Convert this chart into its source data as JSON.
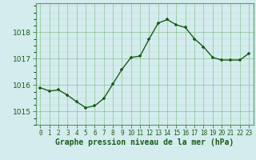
{
  "x": [
    0,
    1,
    2,
    3,
    4,
    5,
    6,
    7,
    8,
    9,
    10,
    11,
    12,
    13,
    14,
    15,
    16,
    17,
    18,
    19,
    20,
    21,
    22,
    23
  ],
  "y": [
    1015.9,
    1015.78,
    1015.82,
    1015.62,
    1015.37,
    1015.15,
    1015.22,
    1015.5,
    1016.05,
    1016.6,
    1017.05,
    1017.1,
    1017.75,
    1018.35,
    1018.48,
    1018.28,
    1018.18,
    1017.75,
    1017.45,
    1017.05,
    1016.95,
    1016.95,
    1016.95,
    1017.2
  ],
  "line_color": "#1a5c1a",
  "marker_color": "#1a5c1a",
  "bg_color": "#d4ecee",
  "grid_color": "#7ab87a",
  "grid_color_minor": "#a0cca0",
  "xlabel": "Graphe pression niveau de la mer (hPa)",
  "xlabel_color": "#1a5c1a",
  "tick_color": "#1a5c1a",
  "border_color": "#5a9a6a",
  "ylim": [
    1014.5,
    1019.1
  ],
  "yticks": [
    1015,
    1016,
    1017,
    1018
  ],
  "xticks": [
    0,
    1,
    2,
    3,
    4,
    5,
    6,
    7,
    8,
    9,
    10,
    11,
    12,
    13,
    14,
    15,
    16,
    17,
    18,
    19,
    20,
    21,
    22,
    23
  ],
  "xtick_labels": [
    "0",
    "1",
    "2",
    "3",
    "4",
    "5",
    "6",
    "7",
    "8",
    "9",
    "10",
    "11",
    "12",
    "13",
    "14",
    "15",
    "16",
    "17",
    "18",
    "19",
    "20",
    "21",
    "22",
    "23"
  ],
  "xlabel_fontsize": 7,
  "ytick_fontsize": 6.5,
  "xtick_fontsize": 5.5,
  "marker_size": 3.5,
  "line_width": 1.0
}
